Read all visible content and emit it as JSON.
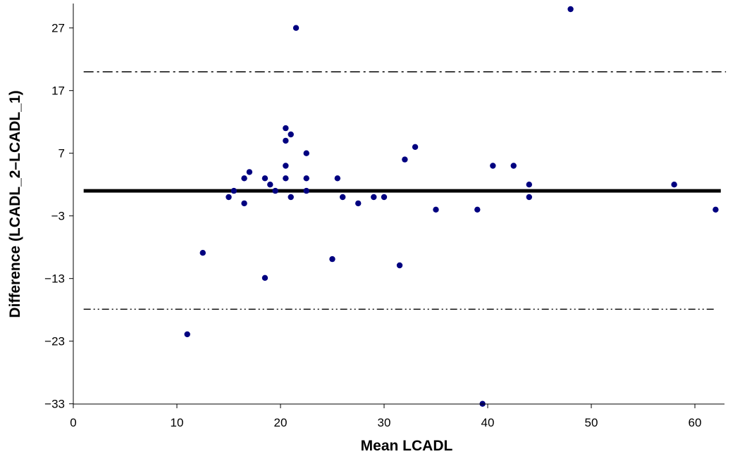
{
  "chart_data": {
    "type": "scatter",
    "title": "",
    "xlabel": "Mean LCADL",
    "ylabel": "Difference (LCADL_2–LCADL_1)",
    "xlim": [
      0,
      64
    ],
    "ylim": [
      -33,
      30
    ],
    "x_ticks": [
      0,
      10,
      20,
      30,
      40,
      50,
      60
    ],
    "y_ticks": [
      -33,
      -23,
      -13,
      -3,
      7,
      17,
      27
    ],
    "y_tick_labels": [
      "−33",
      "−23",
      "−13",
      "−3",
      "7",
      "17",
      "27"
    ],
    "grid": false,
    "legend": "none",
    "point_color": "#000080",
    "lines": [
      {
        "kind": "mean",
        "y": 1.0,
        "x_range": [
          1,
          62.5
        ],
        "style": "solid-thick"
      },
      {
        "kind": "upper-limit",
        "y": 20.0,
        "x_range": [
          1,
          63
        ],
        "style": "dash-dot"
      },
      {
        "kind": "lower-limit",
        "y": -17.9,
        "x_range": [
          1,
          62
        ],
        "style": "dash-dot-dot"
      }
    ],
    "points": [
      {
        "x": 11.0,
        "y": -21.9
      },
      {
        "x": 12.5,
        "y": -8.9
      },
      {
        "x": 15.0,
        "y": 0.0
      },
      {
        "x": 15.5,
        "y": 1.0
      },
      {
        "x": 16.5,
        "y": 3.0
      },
      {
        "x": 16.5,
        "y": -1.0
      },
      {
        "x": 17.0,
        "y": 4.0
      },
      {
        "x": 18.5,
        "y": 3.0
      },
      {
        "x": 18.5,
        "y": -12.9
      },
      {
        "x": 19.0,
        "y": 2.0
      },
      {
        "x": 19.5,
        "y": 1.0
      },
      {
        "x": 20.5,
        "y": 11.0
      },
      {
        "x": 20.5,
        "y": 9.0
      },
      {
        "x": 20.5,
        "y": 5.0
      },
      {
        "x": 20.5,
        "y": 3.0
      },
      {
        "x": 21.0,
        "y": 10.0
      },
      {
        "x": 21.0,
        "y": 0.0
      },
      {
        "x": 21.5,
        "y": 27.0
      },
      {
        "x": 22.5,
        "y": 7.0
      },
      {
        "x": 22.5,
        "y": 3.0
      },
      {
        "x": 22.5,
        "y": 1.0
      },
      {
        "x": 25.0,
        "y": -9.9
      },
      {
        "x": 25.5,
        "y": 3.0
      },
      {
        "x": 26.0,
        "y": 0.0
      },
      {
        "x": 27.5,
        "y": -1.0
      },
      {
        "x": 29.0,
        "y": 0.0
      },
      {
        "x": 30.0,
        "y": 0.0
      },
      {
        "x": 31.5,
        "y": -10.9
      },
      {
        "x": 32.0,
        "y": 6.0
      },
      {
        "x": 33.0,
        "y": 8.0
      },
      {
        "x": 35.0,
        "y": -2.0
      },
      {
        "x": 39.0,
        "y": -2.0
      },
      {
        "x": 39.5,
        "y": -33.0
      },
      {
        "x": 40.5,
        "y": 5.0
      },
      {
        "x": 42.5,
        "y": 5.0
      },
      {
        "x": 44.0,
        "y": 2.0
      },
      {
        "x": 44.0,
        "y": 0.0
      },
      {
        "x": 48.0,
        "y": 30.0
      },
      {
        "x": 58.0,
        "y": 2.0
      },
      {
        "x": 62.0,
        "y": -2.0
      }
    ]
  }
}
